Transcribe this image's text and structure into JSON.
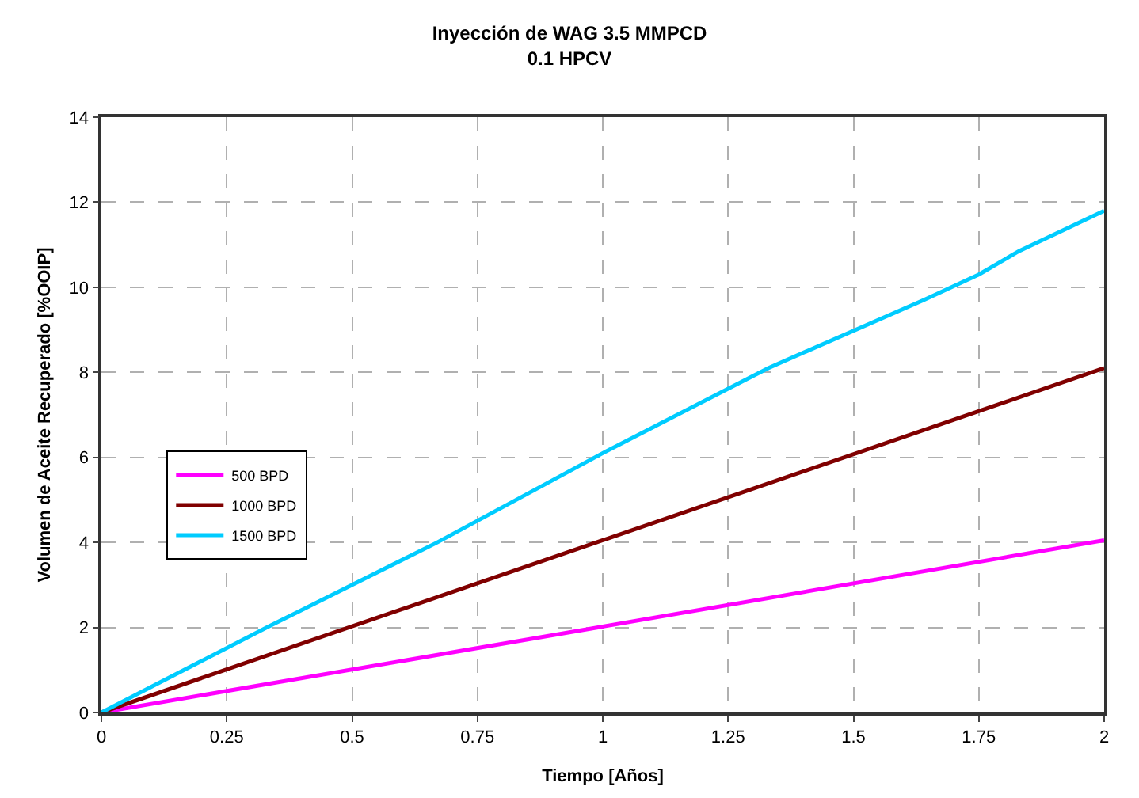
{
  "chart_data": {
    "type": "line",
    "title": "Inyección de WAG 3.5 MMPCD\n0.1 HPCV",
    "xlabel": "Tiempo [Años]",
    "ylabel": "Volumen de Aceite Recuperado [%OOIP]",
    "series": [
      {
        "name": "500 BPD",
        "color": "#ff00ff",
        "x": [
          0,
          1,
          2
        ],
        "values": [
          0,
          2.02,
          4.05
        ]
      },
      {
        "name": "1000 BPD",
        "color": "#800000",
        "x": [
          0,
          1,
          2
        ],
        "values": [
          0,
          4.05,
          8.1
        ]
      },
      {
        "name": "1500 BPD",
        "color": "#00ccff",
        "x": [
          0,
          0.33,
          0.67,
          1,
          1.33,
          1.64,
          1.75,
          1.83,
          2
        ],
        "values": [
          0,
          2.0,
          4.0,
          6.1,
          8.1,
          9.7,
          10.3,
          10.85,
          11.8
        ]
      }
    ],
    "xlim": [
      0,
      2
    ],
    "xticks": [
      0,
      0.25,
      0.5,
      0.75,
      1,
      1.25,
      1.5,
      1.75,
      2
    ],
    "ylim": [
      0,
      14
    ],
    "yticks": [
      0,
      2,
      4,
      6,
      8,
      10,
      12,
      14
    ],
    "grid": true,
    "legend": "left",
    "marker": "none",
    "line_style": "solid"
  }
}
